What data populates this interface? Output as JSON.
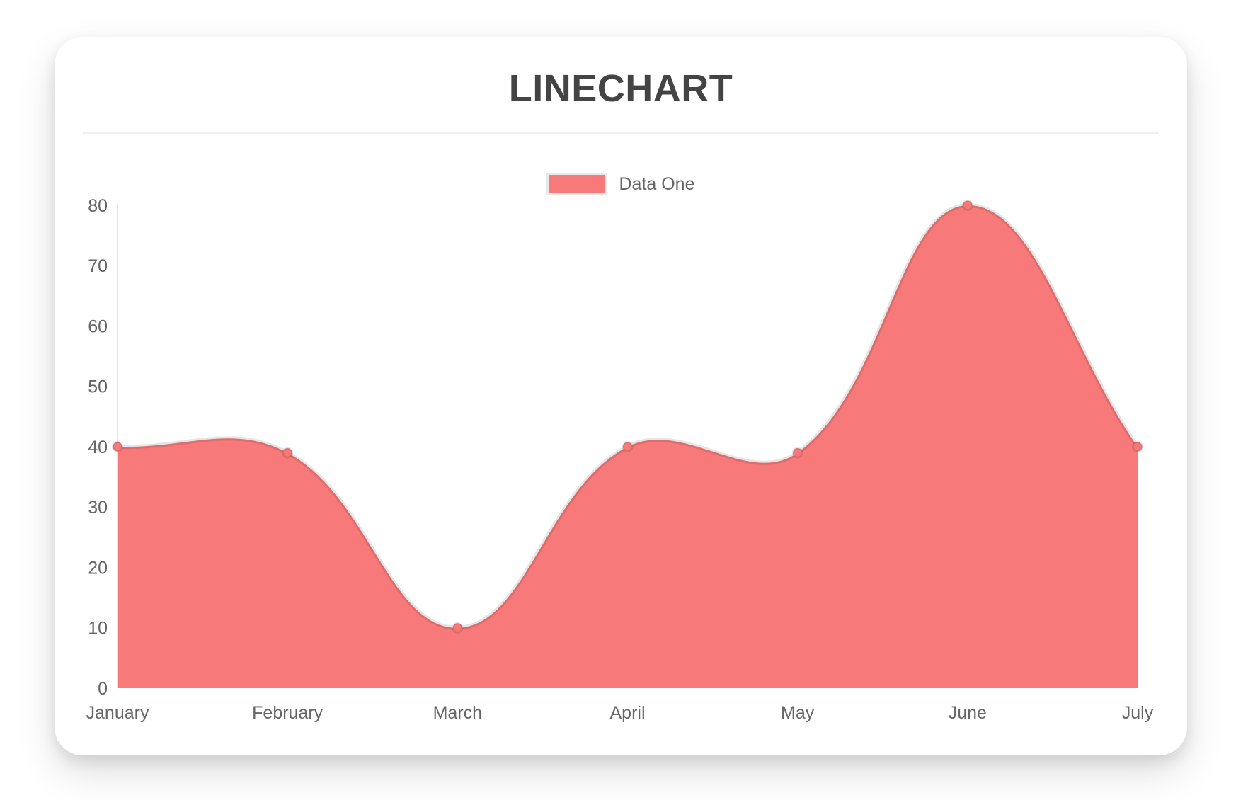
{
  "page": {
    "background": "#ffffff"
  },
  "card": {
    "background": "#ffffff"
  },
  "chart_data": {
    "type": "area",
    "title": "LINECHART",
    "categories": [
      "January",
      "February",
      "March",
      "April",
      "May",
      "June",
      "July"
    ],
    "series": [
      {
        "name": "Data One",
        "values": [
          40,
          39,
          10,
          40,
          39,
          80,
          40
        ],
        "color": "#f87979"
      }
    ],
    "xlabel": "",
    "ylabel": "",
    "ylim": [
      0,
      80
    ],
    "yticks": [
      0,
      10,
      20,
      30,
      40,
      50,
      60,
      70,
      80
    ],
    "grid": false,
    "legend_position": "top-center",
    "curve": "smooth-bezier-tension-0.4",
    "point_style": "circle",
    "colors": {
      "fill": "#f87979",
      "line_border": "rgba(0,0,0,0.10)",
      "axis_line": "rgba(0,0,0,0.10)",
      "axis_text": "#666666",
      "title_text": "#444444"
    }
  }
}
